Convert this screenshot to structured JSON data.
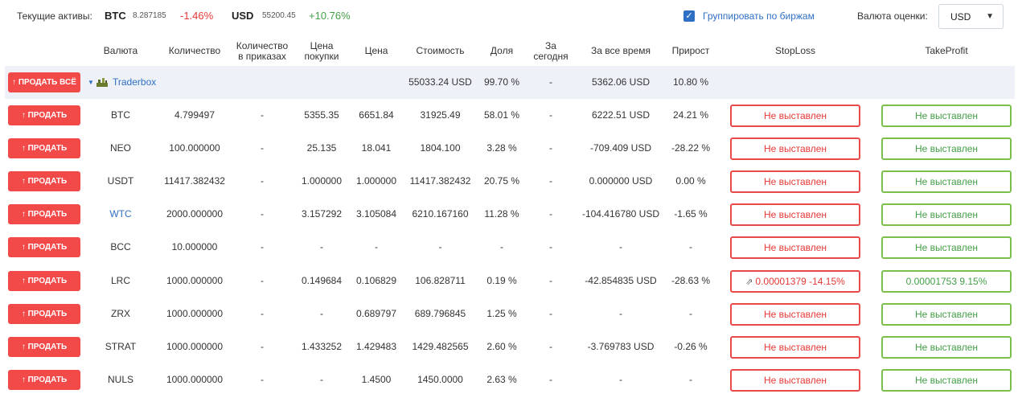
{
  "top": {
    "assets_label": "Текущие активы:",
    "assets": [
      {
        "code": "BTC",
        "amount": "8.287185",
        "change": "-1.46%"
      },
      {
        "code": "USD",
        "amount": "55200.45",
        "change": "+10.76%"
      }
    ],
    "group_checkbox": {
      "checked": true,
      "label": "Группировать по биржам"
    },
    "valuation_label": "Валюта оценки:",
    "valuation_value": "USD"
  },
  "headers": {
    "currency": "Валюта",
    "quantity": "Количество",
    "in_orders_1": "Количество",
    "in_orders_2": "в приказах",
    "buy_price_1": "Цена",
    "buy_price_2": "покупки",
    "price": "Цена",
    "value": "Стоимость",
    "share": "Доля",
    "today_1": "За",
    "today_2": "сегодня",
    "all_time": "За все время",
    "growth": "Прирост",
    "stoploss": "StopLoss",
    "takeprofit": "TakeProfit"
  },
  "group": {
    "sell_all_label": "↑ ПРОДАТЬ ВСЁ",
    "exchange": "Traderbox",
    "value": "55033.24 USD",
    "share": "99.70 %",
    "today": "-",
    "all_time": "5362.06 USD",
    "growth": "10.80 %"
  },
  "sell_label": "↑ ПРОДАТЬ",
  "rows": [
    {
      "currency": "BTC",
      "quantity": "4.799497",
      "in_orders": "-",
      "buy_price": "5355.35",
      "price": "6651.84",
      "value": "31925.49",
      "share": "58.01 %",
      "today": "-",
      "all_time": "6222.51 USD",
      "growth": "24.21 %",
      "sign": "pos",
      "link": false,
      "stoploss": "Не выставлен",
      "takeprofit": "Не выставлен"
    },
    {
      "currency": "NEO",
      "quantity": "100.000000",
      "in_orders": "-",
      "buy_price": "25.135",
      "price": "18.041",
      "value": "1804.100",
      "share": "3.28 %",
      "today": "-",
      "all_time": "-709.409 USD",
      "growth": "-28.22 %",
      "sign": "neg",
      "link": false,
      "stoploss": "Не выставлен",
      "takeprofit": "Не выставлен"
    },
    {
      "currency": "USDT",
      "quantity": "11417.382432",
      "in_orders": "-",
      "buy_price": "1.000000",
      "price": "1.000000",
      "value": "11417.382432",
      "share": "20.75 %",
      "today": "-",
      "all_time": "0.000000 USD",
      "growth": "0.00 %",
      "sign": "pos",
      "link": false,
      "stoploss": "Не выставлен",
      "takeprofit": "Не выставлен"
    },
    {
      "currency": "WTC",
      "quantity": "2000.000000",
      "in_orders": "-",
      "buy_price": "3.157292",
      "price": "3.105084",
      "value": "6210.167160",
      "share": "11.28 %",
      "today": "-",
      "all_time": "-104.416780 USD",
      "growth": "-1.65 %",
      "sign": "neg",
      "link": true,
      "stoploss": "Не выставлен",
      "takeprofit": "Не выставлен"
    },
    {
      "currency": "BCC",
      "quantity": "10.000000",
      "in_orders": "-",
      "buy_price": "-",
      "price": "-",
      "value": "-",
      "share": "-",
      "today": "-",
      "all_time": "-",
      "growth": "-",
      "sign": "none",
      "link": false,
      "stoploss": "Не выставлен",
      "takeprofit": "Не выставлен"
    },
    {
      "currency": "LRC",
      "quantity": "1000.000000",
      "in_orders": "-",
      "buy_price": "0.149684",
      "price": "0.106829",
      "value": "106.828711",
      "share": "0.19 %",
      "today": "-",
      "all_time": "-42.854835 USD",
      "growth": "-28.63 %",
      "sign": "neg",
      "link": false,
      "stoploss": "0.00001379 -14.15%",
      "stoploss_icon": "trend-up-icon",
      "takeprofit": "0.00001753 9.15%"
    },
    {
      "currency": "ZRX",
      "quantity": "1000.000000",
      "in_orders": "-",
      "buy_price": "-",
      "price": "0.689797",
      "value": "689.796845",
      "share": "1.25 %",
      "today": "-",
      "all_time": "-",
      "growth": "-",
      "sign": "none",
      "link": false,
      "stoploss": "Не выставлен",
      "takeprofit": "Не выставлен"
    },
    {
      "currency": "STRAT",
      "quantity": "1000.000000",
      "in_orders": "-",
      "buy_price": "1.433252",
      "price": "1.429483",
      "value": "1429.482565",
      "share": "2.60 %",
      "today": "-",
      "all_time": "-3.769783 USD",
      "growth": "-0.26 %",
      "sign": "neg",
      "link": false,
      "stoploss": "Не выставлен",
      "takeprofit": "Не выставлен"
    },
    {
      "currency": "NULS",
      "quantity": "1000.000000",
      "in_orders": "-",
      "buy_price": "-",
      "price": "1.4500",
      "value": "1450.0000",
      "share": "2.63 %",
      "today": "-",
      "all_time": "-",
      "growth": "-",
      "sign": "none",
      "link": false,
      "stoploss": "Не выставлен",
      "takeprofit": "Не выставлен"
    }
  ],
  "colors": {
    "sell_button": "#f24949",
    "positive": "#43a047",
    "negative": "#e53935",
    "link": "#2f6fc4",
    "stoploss_border": "#e84a4a",
    "takeprofit_border": "#7cbf4b",
    "group_row_bg": "#eef2f8"
  }
}
